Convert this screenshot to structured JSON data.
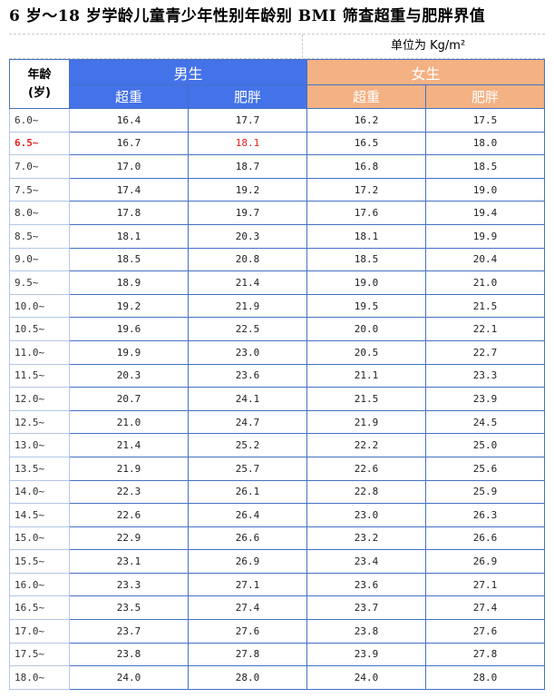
{
  "title": "6 岁～18 岁学龄儿童青少年性别年龄别 BMI 筛查超重与肥胖界值",
  "unit": "单位为 Kg/m²",
  "header": {
    "age_line1": "年龄",
    "age_line2": "(岁)",
    "male": "男生",
    "female": "女生",
    "overweight": "超重",
    "obese": "肥胖"
  },
  "highlight_color": "#e02020",
  "male_color": "#4472e8",
  "female_color": "#f4b183",
  "rows": [
    {
      "age": "6.0~",
      "m_over": "16.4",
      "m_obese": "17.7",
      "f_over": "16.2",
      "f_obese": "17.5"
    },
    {
      "age": "6.5~",
      "m_over": "16.7",
      "m_obese": "18.1",
      "f_over": "16.5",
      "f_obese": "18.0"
    },
    {
      "age": "7.0~",
      "m_over": "17.0",
      "m_obese": "18.7",
      "f_over": "16.8",
      "f_obese": "18.5"
    },
    {
      "age": "7.5~",
      "m_over": "17.4",
      "m_obese": "19.2",
      "f_over": "17.2",
      "f_obese": "19.0"
    },
    {
      "age": "8.0~",
      "m_over": "17.8",
      "m_obese": "19.7",
      "f_over": "17.6",
      "f_obese": "19.4"
    },
    {
      "age": "8.5~",
      "m_over": "18.1",
      "m_obese": "20.3",
      "f_over": "18.1",
      "f_obese": "19.9"
    },
    {
      "age": "9.0~",
      "m_over": "18.5",
      "m_obese": "20.8",
      "f_over": "18.5",
      "f_obese": "20.4"
    },
    {
      "age": "9.5~",
      "m_over": "18.9",
      "m_obese": "21.4",
      "f_over": "19.0",
      "f_obese": "21.0"
    },
    {
      "age": "10.0~",
      "m_over": "19.2",
      "m_obese": "21.9",
      "f_over": "19.5",
      "f_obese": "21.5"
    },
    {
      "age": "10.5~",
      "m_over": "19.6",
      "m_obese": "22.5",
      "f_over": "20.0",
      "f_obese": "22.1"
    },
    {
      "age": "11.0~",
      "m_over": "19.9",
      "m_obese": "23.0",
      "f_over": "20.5",
      "f_obese": "22.7"
    },
    {
      "age": "11.5~",
      "m_over": "20.3",
      "m_obese": "23.6",
      "f_over": "21.1",
      "f_obese": "23.3"
    },
    {
      "age": "12.0~",
      "m_over": "20.7",
      "m_obese": "24.1",
      "f_over": "21.5",
      "f_obese": "23.9"
    },
    {
      "age": "12.5~",
      "m_over": "21.0",
      "m_obese": "24.7",
      "f_over": "21.9",
      "f_obese": "24.5"
    },
    {
      "age": "13.0~",
      "m_over": "21.4",
      "m_obese": "25.2",
      "f_over": "22.2",
      "f_obese": "25.0"
    },
    {
      "age": "13.5~",
      "m_over": "21.9",
      "m_obese": "25.7",
      "f_over": "22.6",
      "f_obese": "25.6"
    },
    {
      "age": "14.0~",
      "m_over": "22.3",
      "m_obese": "26.1",
      "f_over": "22.8",
      "f_obese": "25.9"
    },
    {
      "age": "14.5~",
      "m_over": "22.6",
      "m_obese": "26.4",
      "f_over": "23.0",
      "f_obese": "26.3"
    },
    {
      "age": "15.0~",
      "m_over": "22.9",
      "m_obese": "26.6",
      "f_over": "23.2",
      "f_obese": "26.6"
    },
    {
      "age": "15.5~",
      "m_over": "23.1",
      "m_obese": "26.9",
      "f_over": "23.4",
      "f_obese": "26.9"
    },
    {
      "age": "16.0~",
      "m_over": "23.3",
      "m_obese": "27.1",
      "f_over": "23.6",
      "f_obese": "27.1"
    },
    {
      "age": "16.5~",
      "m_over": "23.5",
      "m_obese": "27.4",
      "f_over": "23.7",
      "f_obese": "27.4"
    },
    {
      "age": "17.0~",
      "m_over": "23.7",
      "m_obese": "27.6",
      "f_over": "23.8",
      "f_obese": "27.6"
    },
    {
      "age": "17.5~",
      "m_over": "23.8",
      "m_obese": "27.8",
      "f_over": "23.9",
      "f_obese": "27.8"
    },
    {
      "age": "18.0~",
      "m_over": "24.0",
      "m_obese": "28.0",
      "f_over": "24.0",
      "f_obese": "28.0"
    }
  ]
}
